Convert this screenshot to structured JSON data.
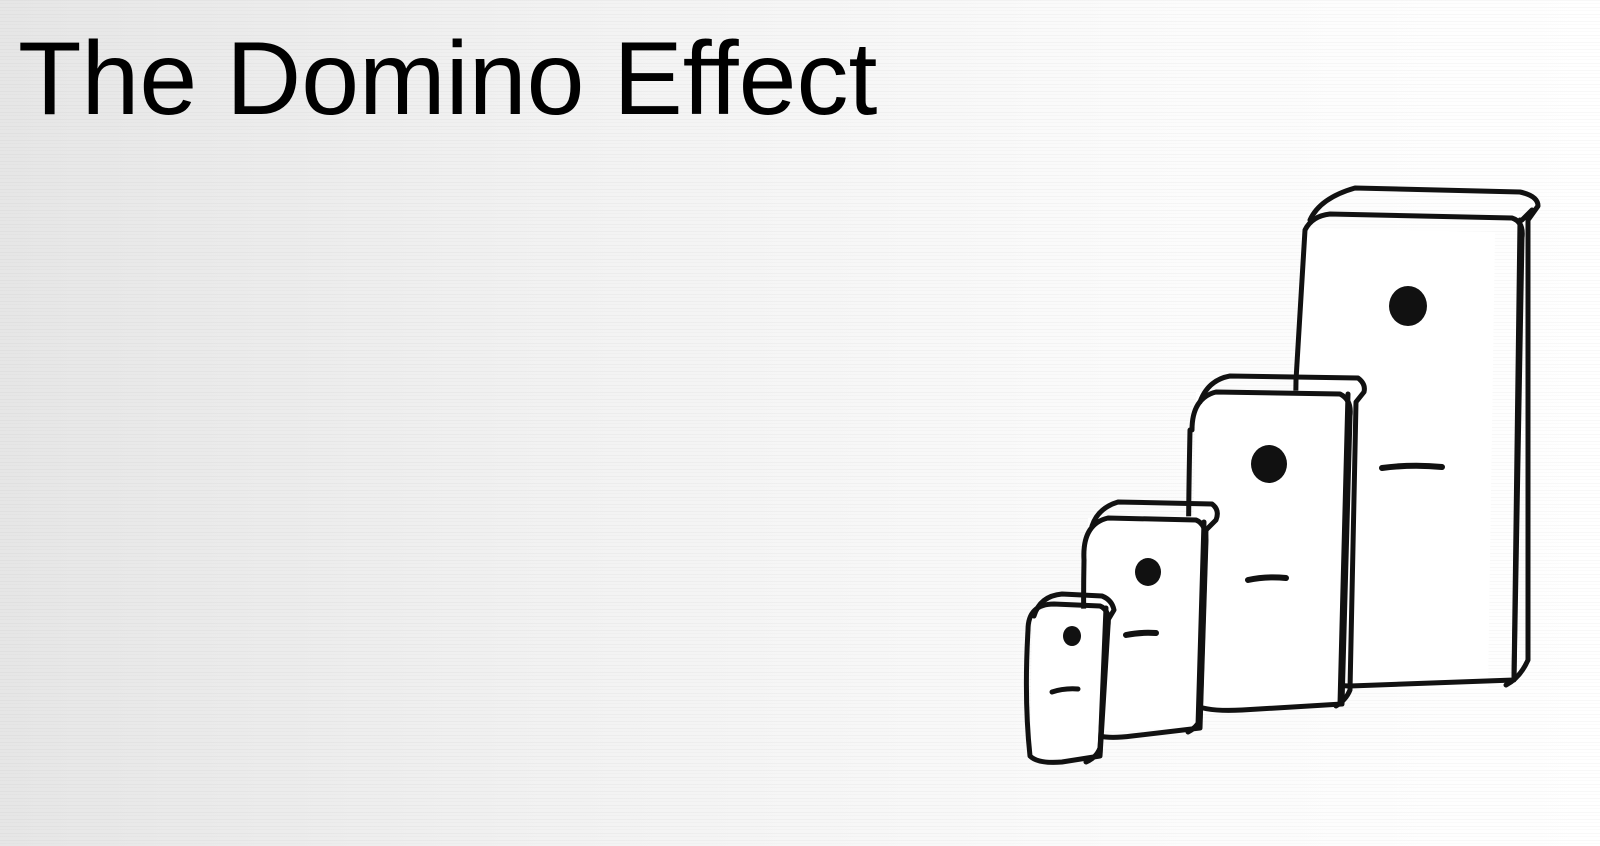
{
  "slide": {
    "title": "The Domino Effect"
  },
  "illustration": {
    "icon": "dominoes-illustration-icon",
    "domino_count": 4
  },
  "colors": {
    "background": "#f4f4f4",
    "text": "#000000",
    "ink": "#111111"
  }
}
